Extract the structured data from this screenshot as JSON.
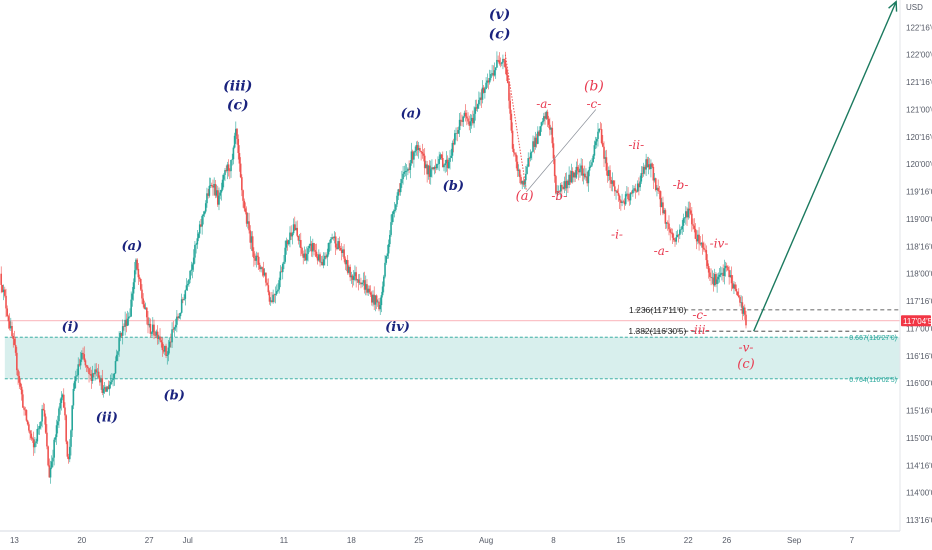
{
  "chart_data": {
    "type": "candlestick",
    "currency": "USD",
    "y_axis": {
      "ticks": [
        "122'16'0",
        "122'00'0",
        "121'16'0",
        "121'00'0",
        "120'16'0",
        "120'00'0",
        "119'16'0",
        "119'00'0",
        "118'16'0",
        "118'00'0",
        "117'16'0",
        "117'00'0",
        "116'16'0",
        "116'00'0",
        "115'16'0",
        "115'00'0",
        "114'16'0",
        "114'00'0",
        "113'16'0"
      ],
      "tick_values": [
        122.5,
        122.0,
        121.5,
        121.0,
        120.5,
        120.0,
        119.5,
        119.0,
        118.5,
        118.0,
        117.5,
        117.0,
        116.5,
        116.0,
        115.5,
        115.0,
        114.5,
        114.0,
        113.5
      ],
      "range": [
        113.3,
        123.0
      ]
    },
    "x_axis": {
      "labels": [
        "13",
        "20",
        "27",
        "Jul",
        "11",
        "18",
        "25",
        "Aug",
        "8",
        "15",
        "22",
        "26",
        "Sep",
        "7"
      ],
      "label_days": [
        0,
        7,
        14,
        18,
        28,
        35,
        42,
        49,
        56,
        63,
        70,
        74,
        81,
        87
      ],
      "range_days": [
        -1.5,
        92
      ]
    },
    "current_price": {
      "label": "117'04'5",
      "value": 117.14,
      "color": "#f23645"
    },
    "levels": [
      {
        "label": "1.236(117'11'0)",
        "value": 117.34,
        "style": "dashed"
      },
      {
        "label": "1.382(116'30'5)",
        "value": 116.95,
        "style": "dashed"
      }
    ],
    "zone": {
      "top": {
        "label": "0.667(116'27'0)",
        "value": 116.84
      },
      "bottom": {
        "label": "0.764(116'02'5)",
        "value": 116.08
      },
      "color": "#26a69a"
    },
    "waypoints": [
      [
        -1.5,
        118.0
      ],
      [
        0,
        116.6
      ],
      [
        1,
        115.5
      ],
      [
        2,
        114.8
      ],
      [
        3,
        115.6
      ],
      [
        3.6,
        114.3
      ],
      [
        4.5,
        115.3
      ],
      [
        5,
        115.9
      ],
      [
        5.6,
        114.5
      ],
      [
        6.2,
        116.0
      ],
      [
        7,
        116.5
      ],
      [
        7.8,
        116.1
      ],
      [
        8.6,
        116.3
      ],
      [
        9.3,
        115.8
      ],
      [
        10.2,
        116.1
      ],
      [
        11,
        116.9
      ],
      [
        12,
        117.3
      ],
      [
        12.6,
        118.2
      ],
      [
        13.2,
        117.6
      ],
      [
        14,
        117.0
      ],
      [
        15,
        116.9
      ],
      [
        15.8,
        116.5
      ],
      [
        16.4,
        116.9
      ],
      [
        17.2,
        117.3
      ],
      [
        18,
        117.9
      ],
      [
        19,
        118.6
      ],
      [
        20,
        119.4
      ],
      [
        20.6,
        119.7
      ],
      [
        21.2,
        119.3
      ],
      [
        22,
        119.9
      ],
      [
        22.6,
        120.0
      ],
      [
        23,
        120.6
      ],
      [
        23.6,
        119.5
      ],
      [
        24.2,
        118.9
      ],
      [
        25,
        118.3
      ],
      [
        26,
        118.0
      ],
      [
        26.6,
        117.5
      ],
      [
        27.4,
        117.8
      ],
      [
        28.2,
        118.5
      ],
      [
        29,
        118.9
      ],
      [
        30,
        118.3
      ],
      [
        31,
        118.5
      ],
      [
        32,
        118.1
      ],
      [
        33,
        118.7
      ],
      [
        34,
        118.4
      ],
      [
        34.8,
        118.0
      ],
      [
        36,
        117.9
      ],
      [
        37,
        117.6
      ],
      [
        38,
        117.4
      ],
      [
        38.6,
        118.3
      ],
      [
        39.4,
        119.2
      ],
      [
        40,
        119.6
      ],
      [
        40.8,
        119.9
      ],
      [
        41.6,
        120.3
      ],
      [
        42.4,
        120.1
      ],
      [
        43.2,
        119.8
      ],
      [
        44,
        120.1
      ],
      [
        45,
        120.0
      ],
      [
        45.8,
        120.5
      ],
      [
        46.6,
        120.9
      ],
      [
        47.4,
        120.7
      ],
      [
        48.2,
        121.2
      ],
      [
        49,
        121.4
      ],
      [
        50,
        121.8
      ],
      [
        50.8,
        122.0
      ],
      [
        51.2,
        121.6
      ],
      [
        51.7,
        120.4
      ],
      [
        52.2,
        119.9
      ],
      [
        53,
        119.6
      ],
      [
        53.6,
        120.3
      ],
      [
        54.4,
        120.5
      ],
      [
        55.2,
        120.9
      ],
      [
        55.8,
        120.6
      ],
      [
        56.2,
        119.5
      ],
      [
        57,
        119.6
      ],
      [
        58,
        119.8
      ],
      [
        58.8,
        120.0
      ],
      [
        59.4,
        119.7
      ],
      [
        60.2,
        120.2
      ],
      [
        60.8,
        120.7
      ],
      [
        61.4,
        120.0
      ],
      [
        62,
        119.7
      ],
      [
        63,
        119.3
      ],
      [
        64,
        119.4
      ],
      [
        65,
        119.7
      ],
      [
        65.6,
        120.0
      ],
      [
        66.2,
        119.9
      ],
      [
        67,
        119.4
      ],
      [
        67.8,
        118.9
      ],
      [
        68.6,
        118.6
      ],
      [
        69.4,
        118.9
      ],
      [
        70,
        119.2
      ],
      [
        70.8,
        118.7
      ],
      [
        71.6,
        118.5
      ],
      [
        72.4,
        117.9
      ],
      [
        73.2,
        117.9
      ],
      [
        74,
        118.1
      ],
      [
        74.6,
        117.8
      ],
      [
        75.2,
        117.6
      ],
      [
        76,
        117.15
      ]
    ],
    "wave_labels": [
      {
        "text": "(v)",
        "day": 50.4,
        "price": 122.65,
        "color": "blue",
        "size": 14
      },
      {
        "text": "(c)",
        "day": 50.4,
        "price": 122.3,
        "color": "blue",
        "size": 14
      },
      {
        "text": "(iii)",
        "day": 23.2,
        "price": 121.35,
        "color": "blue",
        "size": 14
      },
      {
        "text": "(c)",
        "day": 23.2,
        "price": 121.0,
        "color": "blue",
        "size": 14
      },
      {
        "text": "(a)",
        "day": 41.2,
        "price": 120.85,
        "color": "blue",
        "size": 13
      },
      {
        "text": "(b)",
        "day": 45.6,
        "price": 119.53,
        "color": "blue",
        "size": 13
      },
      {
        "text": "(a)",
        "day": 12.2,
        "price": 118.43,
        "color": "blue",
        "size": 13
      },
      {
        "text": "(iv)",
        "day": 39.8,
        "price": 116.95,
        "color": "blue",
        "size": 13
      },
      {
        "text": "(i)",
        "day": 5.8,
        "price": 116.95,
        "color": "blue",
        "size": 13
      },
      {
        "text": "(b)",
        "day": 16.6,
        "price": 115.7,
        "color": "blue",
        "size": 13
      },
      {
        "text": "(ii)",
        "day": 9.6,
        "price": 115.3,
        "color": "blue",
        "size": 13
      },
      {
        "text": "(b)",
        "day": 60.2,
        "price": 121.35,
        "color": "red",
        "size": 14
      },
      {
        "text": "-c-",
        "day": 60.2,
        "price": 121.03,
        "color": "red",
        "size": 12
      },
      {
        "text": "-a-",
        "day": 55.0,
        "price": 121.03,
        "color": "red",
        "size": 12
      },
      {
        "text": "(a)",
        "day": 53.0,
        "price": 119.35,
        "color": "red",
        "size": 13
      },
      {
        "text": "-b-",
        "day": 56.6,
        "price": 119.35,
        "color": "red",
        "size": 12
      },
      {
        "text": "-ii-",
        "day": 64.6,
        "price": 120.28,
        "color": "red",
        "size": 12
      },
      {
        "text": "-b-",
        "day": 69.2,
        "price": 119.55,
        "color": "red",
        "size": 12
      },
      {
        "text": "-i-",
        "day": 62.6,
        "price": 118.64,
        "color": "red",
        "size": 12
      },
      {
        "text": "-a-",
        "day": 67.2,
        "price": 118.34,
        "color": "red",
        "size": 12
      },
      {
        "text": "-iv-",
        "day": 73.2,
        "price": 118.48,
        "color": "red",
        "size": 12
      },
      {
        "text": "-c-",
        "day": 71.2,
        "price": 117.17,
        "color": "red",
        "size": 12
      },
      {
        "text": "-iii-",
        "day": 71.2,
        "price": 116.9,
        "color": "red",
        "size": 12
      },
      {
        "text": "-v-",
        "day": 76.0,
        "price": 116.58,
        "color": "red",
        "size": 12
      },
      {
        "text": "(c)",
        "day": 76.0,
        "price": 116.28,
        "color": "red",
        "size": 13
      }
    ],
    "projection_arrow": {
      "from": [
        76.8,
        116.95
      ],
      "to": [
        91.6,
        122.97
      ],
      "color": "#1b7a5f"
    },
    "dotted_connector": {
      "from": [
        51.0,
        122.0
      ],
      "to": [
        53.2,
        119.5
      ]
    },
    "thin_connector": {
      "from": [
        53.2,
        119.5
      ],
      "to": [
        60.4,
        121.0
      ]
    },
    "colors": {
      "up": "#26a69a",
      "down": "#ef5350"
    }
  }
}
